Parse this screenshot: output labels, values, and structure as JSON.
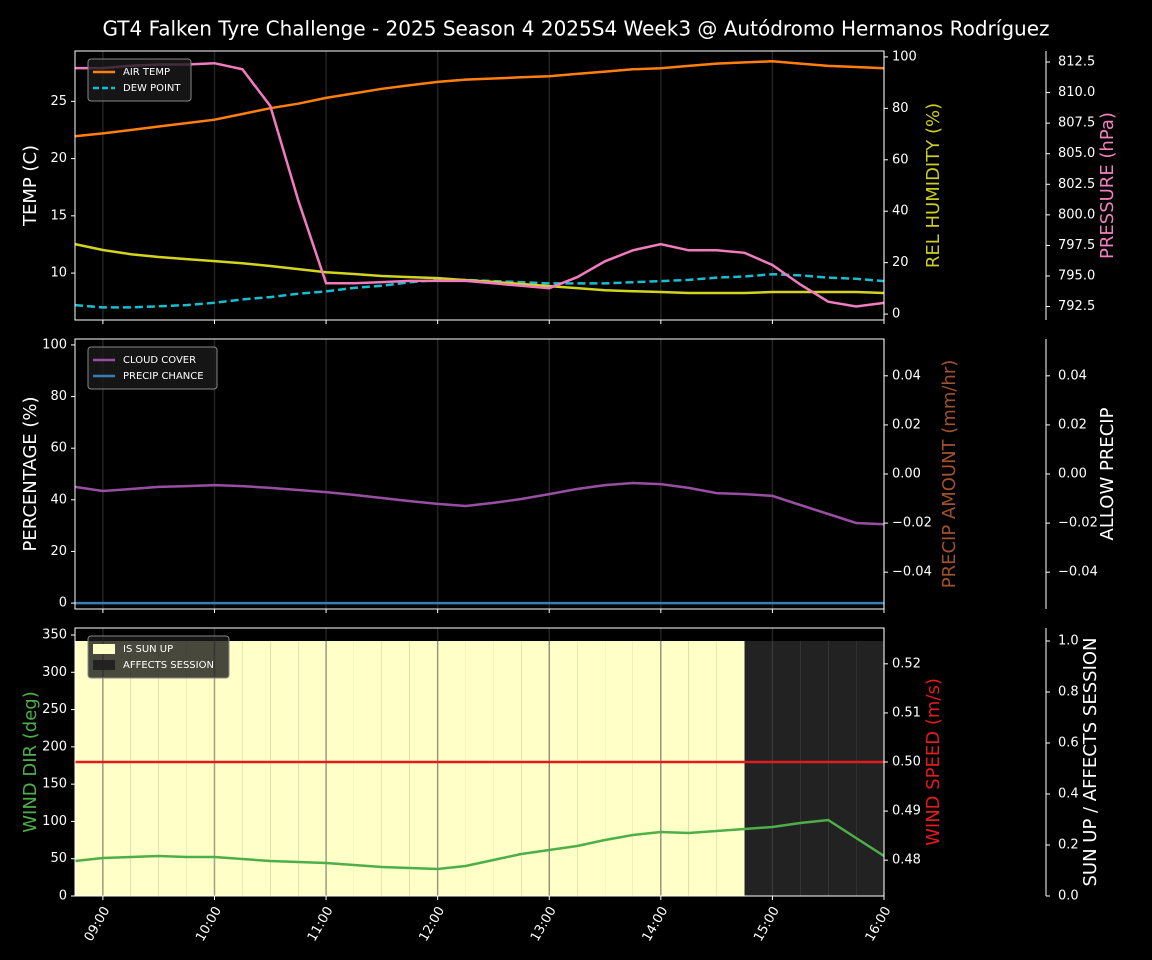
{
  "chart_data": {
    "type": "line",
    "title": "GT4 Falken Tyre Challenge - 2025 Season 4 2025S4 Week3 @ Autódromo Hermanos Rodríguez",
    "x": [
      8.75,
      9,
      9.25,
      9.5,
      9.75,
      10,
      10.25,
      10.5,
      10.75,
      11,
      11.25,
      11.5,
      11.75,
      12,
      12.25,
      12.5,
      12.75,
      13,
      13.25,
      13.5,
      13.75,
      14,
      14.25,
      14.5,
      14.75,
      15,
      15.25,
      15.5,
      15.75,
      16
    ],
    "xlim": [
      8.75,
      16
    ],
    "xticks": [
      {
        "value": 9,
        "label": "09:00"
      },
      {
        "value": 10,
        "label": "10:00"
      },
      {
        "value": 11,
        "label": "11:00"
      },
      {
        "value": 12,
        "label": "12:00"
      },
      {
        "value": 13,
        "label": "13:00"
      },
      {
        "value": 14,
        "label": "14:00"
      },
      {
        "value": 15,
        "label": "15:00"
      },
      {
        "value": 16,
        "label": "16:00"
      }
    ],
    "grid": true,
    "panels": [
      {
        "type": "line",
        "legend": "upper left",
        "ylabel": "TEMP (C)",
        "ylabel_color": "#ffffff",
        "ylim": [
          5.9,
          29.4
        ],
        "yticks": [
          10,
          15,
          20,
          25
        ],
        "y2label": "REL HUMIDITY (%)",
        "y2label_color": "#cccc22",
        "y2lim": [
          -2.3,
          102.3
        ],
        "y2ticks": [
          0,
          20,
          40,
          60,
          80,
          100
        ],
        "y3label": "PRESSURE (hPa)",
        "y3label_color": "#f080c0",
        "y3lim": [
          791.4,
          813.4
        ],
        "y3ticks": [
          792.5,
          {
            "value": 795,
            "label": "795.0"
          },
          797.5,
          {
            "value": 800,
            "label": "800.0"
          },
          802.5,
          {
            "value": 805,
            "label": "805.0"
          },
          807.5,
          {
            "value": 810,
            "label": "810.0"
          },
          812.5
        ],
        "series": [
          {
            "name": "AIR TEMP",
            "type": "line",
            "color": "#ff7f0e",
            "axis": "y",
            "values": [
              21.95,
              22.2,
              22.5,
              22.8,
              23.1,
              23.4,
              23.9,
              24.4,
              24.8,
              25.3,
              25.7,
              26.1,
              26.4,
              26.7,
              26.9,
              27.0,
              27.1,
              27.2,
              27.4,
              27.6,
              27.8,
              27.9,
              28.1,
              28.3,
              28.4,
              28.5,
              28.3,
              28.1,
              28.0,
              27.9
            ]
          },
          {
            "name": "DEW POINT",
            "type": "line",
            "color": "#17becf",
            "dash": true,
            "axis": "y",
            "values": [
              7.2,
              7.0,
              7.0,
              7.1,
              7.2,
              7.4,
              7.7,
              7.9,
              8.2,
              8.4,
              8.7,
              8.9,
              9.2,
              9.4,
              9.4,
              9.3,
              9.2,
              9.1,
              9.1,
              9.1,
              9.2,
              9.3,
              9.4,
              9.6,
              9.7,
              9.9,
              9.8,
              9.6,
              9.5,
              9.3
            ]
          },
          {
            "type": "line",
            "legend": false,
            "color": "#d4d41e",
            "axis": "y2",
            "values": [
              27.2,
              24.9,
              23.3,
              22.2,
              21.4,
              20.6,
              19.8,
              18.7,
              17.5,
              16.3,
              15.6,
              14.8,
              14.4,
              14.0,
              13.2,
              12.5,
              11.7,
              10.9,
              10.1,
              9.3,
              8.9,
              8.6,
              8.2,
              8.2,
              8.2,
              8.6,
              8.6,
              8.6,
              8.6,
              8.2
            ]
          },
          {
            "type": "line",
            "legend": false,
            "color": "#f07cbf",
            "axis": "y3",
            "values": [
              812.0,
              812.0,
              812.2,
              812.3,
              812.3,
              812.4,
              811.9,
              808.9,
              801.2,
              794.4,
              794.4,
              794.5,
              794.6,
              794.6,
              794.6,
              794.4,
              794.2,
              794.0,
              794.9,
              796.2,
              797.1,
              797.6,
              797.1,
              797.1,
              796.9,
              795.9,
              794.3,
              792.9,
              792.5,
              792.8
            ]
          }
        ]
      },
      {
        "type": "line",
        "legend": "upper left",
        "ylabel": "PERCENTAGE (%)",
        "ylabel_color": "#ffffff",
        "ylim": [
          -2.3,
          102.3
        ],
        "yticks": [
          0,
          20,
          40,
          60,
          80,
          100
        ],
        "y2label": "PRECIP AMOUNT (mm/hr)",
        "y2label_color": "#a0522d",
        "y2lim": [
          -0.055,
          0.055
        ],
        "y2ticks": [
          {
            "value": -0.04,
            "label": "−0.04"
          },
          {
            "value": -0.02,
            "label": "−0.02"
          },
          {
            "value": 0,
            "label": "0.00"
          },
          0.02,
          0.04
        ],
        "y3label": "ALLOW PRECIP",
        "y3label_color": "#ffffff",
        "y3lim": [
          -0.055,
          0.055
        ],
        "y3ticks": [
          {
            "value": -0.04,
            "label": "−0.04"
          },
          {
            "value": -0.02,
            "label": "−0.02"
          },
          {
            "value": 0,
            "label": "0.00"
          },
          0.02,
          0.04
        ],
        "series": [
          {
            "name": "CLOUD COVER",
            "type": "line",
            "color": "#984ea3",
            "axis": "y",
            "values": [
              45.0,
              43.4,
              44.2,
              45.0,
              45.3,
              45.7,
              45.3,
              44.6,
              43.8,
              43.0,
              41.9,
              40.7,
              39.5,
              38.4,
              37.6,
              38.8,
              40.3,
              42.2,
              44.2,
              45.7,
              46.5,
              46.1,
              44.6,
              42.6,
              42.2,
              41.5,
              38.0,
              34.5,
              31.0,
              30.5
            ]
          },
          {
            "name": "PRECIP CHANCE",
            "type": "line",
            "color": "#377eb8",
            "axis": "y",
            "values": [
              0,
              0,
              0,
              0,
              0,
              0,
              0,
              0,
              0,
              0,
              0,
              0,
              0,
              0,
              0,
              0,
              0,
              0,
              0,
              0,
              0,
              0,
              0,
              0,
              0,
              0,
              0,
              0,
              0,
              0
            ]
          }
        ]
      },
      {
        "type": "line",
        "legend": "upper left",
        "ylabel": "WIND DIR (deg)",
        "ylabel_color": "#4daf4a",
        "ylim": [
          0,
          359.4
        ],
        "yticks": [
          0,
          50,
          100,
          150,
          200,
          250,
          300,
          350
        ],
        "y2label": "WIND SPEED (m/s)",
        "y2label_color": "#e41a1c",
        "y2lim": [
          0.4727,
          0.5273
        ],
        "y2ticks": [
          0.48,
          0.49,
          {
            "value": 0.5,
            "label": "0.50"
          },
          0.51,
          0.52
        ],
        "y3label": "SUN UP / AFFECTS SESSION",
        "y3label_color": "#ffffff",
        "y3lim": [
          0,
          1.051
        ],
        "y3ticks": [
          {
            "value": 0,
            "label": "0.0"
          },
          0.2,
          0.4,
          0.6,
          0.8,
          {
            "value": 1,
            "label": "1.0"
          }
        ],
        "series": [
          {
            "name": "IS SUN UP",
            "type": "area",
            "color": "#ffffc8",
            "axis": "y3",
            "values": [
              1,
              1,
              1,
              1,
              1,
              1,
              1,
              1,
              1,
              1,
              1,
              1,
              1,
              1,
              1,
              1,
              1,
              1,
              1,
              1,
              1,
              1,
              1,
              1,
              1,
              1,
              1,
              1,
              1,
              1
            ]
          },
          {
            "name": "AFFECTS SESSION",
            "type": "area",
            "color": "#222222",
            "axis": "y3",
            "values": [
              0,
              0,
              0,
              0,
              0,
              0,
              0,
              0,
              0,
              0,
              0,
              0,
              0,
              0,
              0,
              0,
              0,
              0,
              0,
              0,
              0,
              0,
              0,
              0,
              1,
              1,
              1,
              1,
              1,
              1
            ]
          },
          {
            "type": "line",
            "legend": false,
            "color": "#4daf4a",
            "axis": "y",
            "values": [
              47,
              51,
              52.3,
              53.6,
              52.3,
              52.3,
              49.6,
              46.9,
              45.6,
              44.3,
              41.6,
              38.9,
              37.5,
              36.2,
              40.2,
              48.3,
              56.3,
              61.7,
              67,
              75.1,
              81.8,
              85.8,
              84.5,
              87.2,
              89.8,
              92.5,
              97.9,
              101.9,
              77.8,
              53.6
            ]
          },
          {
            "type": "line",
            "legend": false,
            "color": "#e41a1c",
            "axis": "y2",
            "values": [
              0.5,
              0.5,
              0.5,
              0.5,
              0.5,
              0.5,
              0.5,
              0.5,
              0.5,
              0.5,
              0.5,
              0.5,
              0.5,
              0.5,
              0.5,
              0.5,
              0.5,
              0.5,
              0.5,
              0.5,
              0.5,
              0.5,
              0.5,
              0.5,
              0.5,
              0.5,
              0.5,
              0.5,
              0.5,
              0.5
            ]
          }
        ]
      }
    ]
  }
}
